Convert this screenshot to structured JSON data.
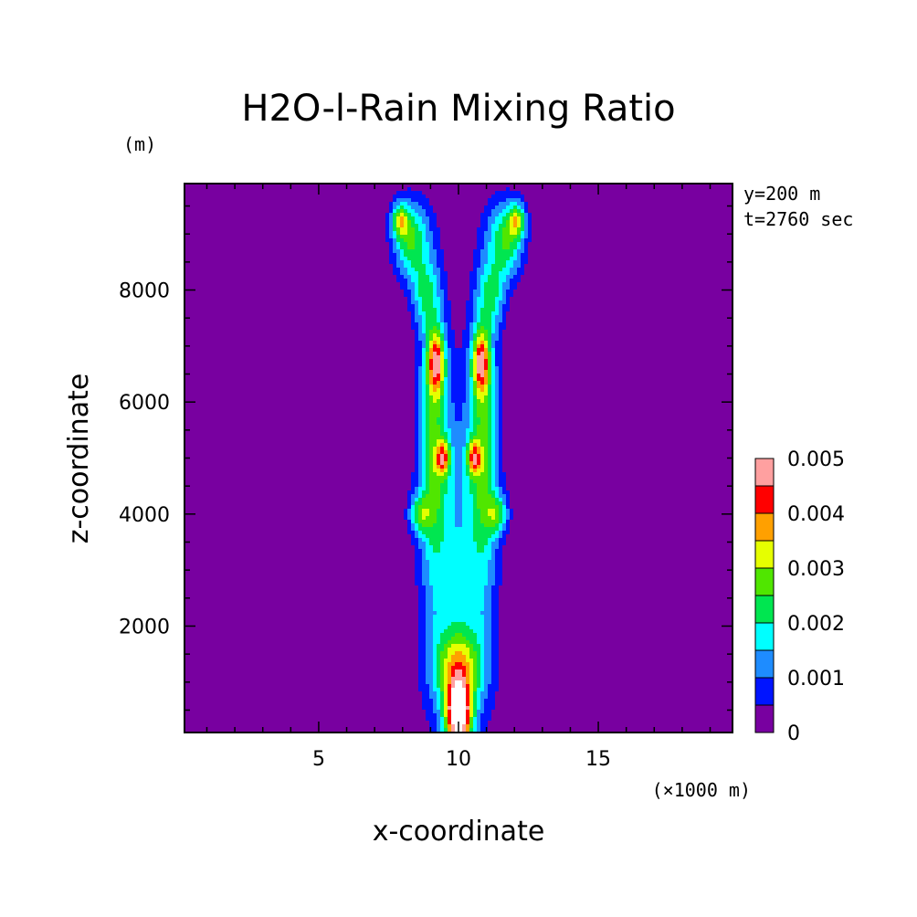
{
  "chart_data": {
    "type": "heatmap",
    "title": "H2O-l-Rain Mixing Ratio",
    "xlabel": "x-coordinate",
    "ylabel": "z-coordinate",
    "x_unit": "(×1000 m)",
    "y_unit": "(m)",
    "annotations": [
      "y=200 m",
      "t=2760 sec"
    ],
    "xlim": [
      0.2,
      19.8
    ],
    "ylim": [
      100,
      9900
    ],
    "x_ticks": [
      5,
      10,
      15
    ],
    "x_tick_labels": [
      "5",
      "10",
      "15"
    ],
    "y_ticks": [
      2000,
      4000,
      6000,
      8000
    ],
    "y_tick_labels": [
      "2000",
      "4000",
      "6000",
      "8000"
    ],
    "grid": false,
    "legend": {
      "placement": "right",
      "levels": [
        0,
        0.0005,
        0.001,
        0.0015,
        0.002,
        0.0025,
        0.003,
        0.0035,
        0.004,
        0.0045,
        0.005
      ],
      "labels": [
        "0",
        "0.001",
        "0.002",
        "0.003",
        "0.004",
        "0.005"
      ],
      "colors": [
        "#7800a0",
        "#0014ff",
        "#1e8cff",
        "#00ffff",
        "#00e650",
        "#50e600",
        "#e6ff00",
        "#ffa000",
        "#ff0000",
        "#ffa0a0"
      ],
      "over_color": "#ffffff"
    },
    "field_description_blobs": [
      {
        "x": 10.0,
        "z": 3000,
        "sx": 1.15,
        "sz": 3200,
        "v": 0.00135
      },
      {
        "x": 10.0,
        "z": 1200,
        "sx": 1.05,
        "sz": 900,
        "v": 0.0015
      },
      {
        "x": 10.0,
        "z": 400,
        "sx": 0.45,
        "sz": 600,
        "v": 0.0052
      },
      {
        "x": 10.0,
        "z": 1300,
        "sx": 0.7,
        "sz": 500,
        "v": 0.0012
      },
      {
        "x": 9.1,
        "z": 5300,
        "sx": 0.55,
        "sz": 2600,
        "v": 0.0022
      },
      {
        "x": 10.9,
        "z": 5300,
        "sx": 0.55,
        "sz": 2600,
        "v": 0.0022
      },
      {
        "x": 9.2,
        "z": 6700,
        "sx": 0.3,
        "sz": 550,
        "v": 0.0032
      },
      {
        "x": 10.8,
        "z": 6700,
        "sx": 0.3,
        "sz": 550,
        "v": 0.0032
      },
      {
        "x": 9.45,
        "z": 5000,
        "sx": 0.25,
        "sz": 300,
        "v": 0.0025
      },
      {
        "x": 10.55,
        "z": 5000,
        "sx": 0.25,
        "sz": 300,
        "v": 0.0025
      },
      {
        "x": 8.6,
        "z": 4000,
        "sx": 0.4,
        "sz": 350,
        "v": 0.0018
      },
      {
        "x": 11.4,
        "z": 4000,
        "sx": 0.4,
        "sz": 350,
        "v": 0.0018
      },
      {
        "x": 8.3,
        "z": 8900,
        "sx": 0.65,
        "sz": 700,
        "v": 0.0025
      },
      {
        "x": 11.7,
        "z": 8900,
        "sx": 0.65,
        "sz": 700,
        "v": 0.0025
      },
      {
        "x": 7.9,
        "z": 9250,
        "sx": 0.3,
        "sz": 300,
        "v": 0.0022
      },
      {
        "x": 12.1,
        "z": 9250,
        "sx": 0.3,
        "sz": 300,
        "v": 0.0022
      },
      {
        "x": 8.8,
        "z": 7900,
        "sx": 0.5,
        "sz": 600,
        "v": 0.0015
      },
      {
        "x": 11.2,
        "z": 7900,
        "sx": 0.5,
        "sz": 600,
        "v": 0.0015
      }
    ]
  }
}
